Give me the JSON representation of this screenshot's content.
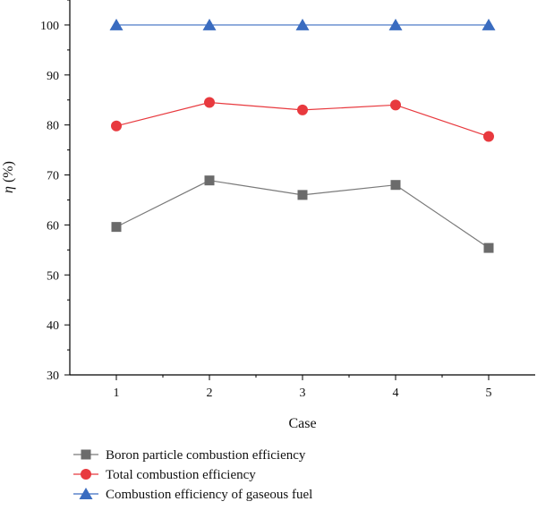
{
  "chart_data": {
    "type": "line",
    "title": "",
    "xlabel": "Case",
    "ylabel_symbol": "η",
    "ylabel_unit": "(%)",
    "categories": [
      "1",
      "2",
      "3",
      "4",
      "5"
    ],
    "ylim": [
      30,
      105
    ],
    "yticks": [
      "30",
      "40",
      "50",
      "60",
      "70",
      "80",
      "90",
      "100"
    ],
    "grid": false,
    "legend_position": "bottom",
    "series": [
      {
        "name": "Boron particle combustion efficiency",
        "values": [
          59.6,
          68.9,
          66.0,
          68.0,
          55.4
        ],
        "marker": "square",
        "marker_color": "#6b6b6b",
        "line_color": "#7a7a7a"
      },
      {
        "name": "Total combustion efficiency",
        "values": [
          79.8,
          84.5,
          83.0,
          84.0,
          77.7
        ],
        "marker": "circle",
        "marker_color": "#e8393e",
        "line_color": "#e8393e"
      },
      {
        "name": "Combustion efficiency of gaseous fuel",
        "values": [
          100,
          100,
          100,
          100,
          100
        ],
        "marker": "triangle",
        "marker_color": "#3a6cc0",
        "line_color": "#3a6cc0"
      }
    ]
  }
}
